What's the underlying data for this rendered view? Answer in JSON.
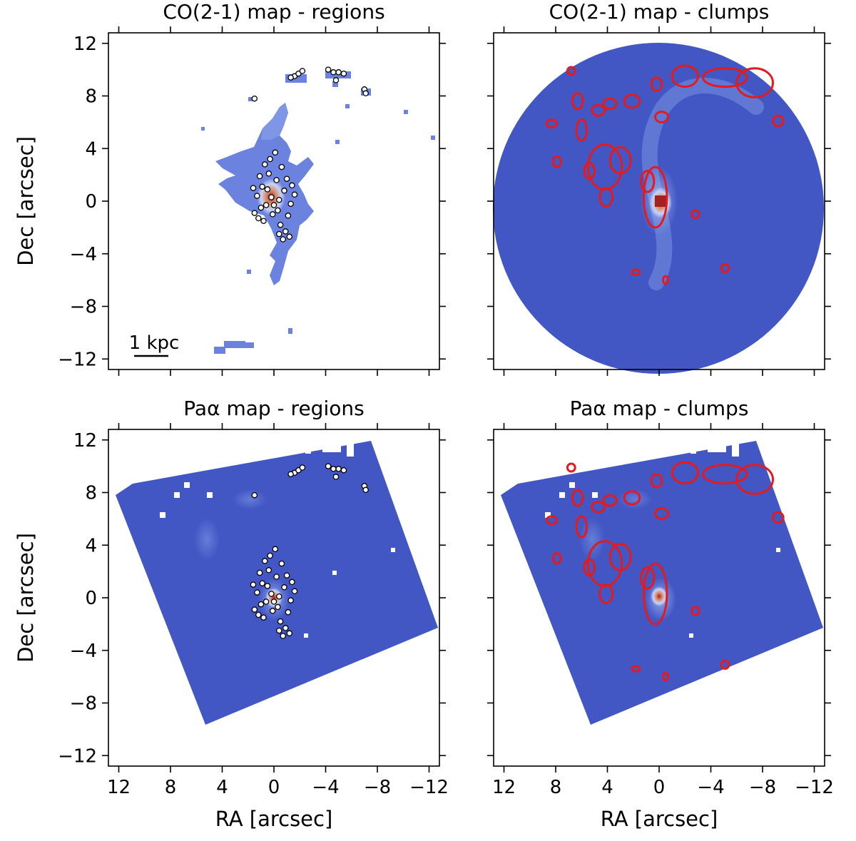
{
  "figure": {
    "panels": [
      {
        "id": "co-regions",
        "title": "CO(2-1) map - regions",
        "map": "CO(2-1)",
        "overlay": "regions",
        "footprint": "patchy",
        "scalebar_label": "1 kpc",
        "show_xlabel": false,
        "show_ylabel": true
      },
      {
        "id": "co-clumps",
        "title": "CO(2-1) map - clumps",
        "map": "CO(2-1)",
        "overlay": "clumps",
        "footprint": "circle",
        "scalebar_label": "",
        "show_xlabel": false,
        "show_ylabel": false
      },
      {
        "id": "paa-regions",
        "title": "Paα map - regions",
        "map": "Paα",
        "overlay": "regions",
        "footprint": "square",
        "scalebar_label": "",
        "show_xlabel": true,
        "show_ylabel": true
      },
      {
        "id": "paa-clumps",
        "title": "Paα map - clumps",
        "map": "Paα",
        "overlay": "clumps",
        "footprint": "square",
        "scalebar_label": "",
        "show_xlabel": true,
        "show_ylabel": false
      }
    ]
  },
  "chart_data": {
    "type": "image-map",
    "xlabel": "RA [arcsec]",
    "ylabel": "Dec [arcsec]",
    "xlim": [
      12.8,
      -12.8
    ],
    "ylim": [
      -12.8,
      12.8
    ],
    "x_ticks": [
      12,
      8,
      4,
      0,
      -4,
      -8,
      -12
    ],
    "x_tick_labels": [
      "12",
      "8",
      "4",
      "0",
      "−4",
      "−8",
      "−12"
    ],
    "y_ticks": [
      12,
      8,
      4,
      0,
      -4,
      -8,
      -12
    ],
    "y_tick_labels": [
      "12",
      "8",
      "4",
      "0",
      "−4",
      "−8",
      "−12"
    ],
    "colors": {
      "background_map": "#3f51c2",
      "emission_mid": "#8ba5ee",
      "emission_peak": "#c03a2b",
      "clump_contour": "#e41a1c",
      "region_marker_edge": "#000000",
      "region_marker_fill": "#ffffff"
    },
    "regions": [
      {
        "ra": 0.2,
        "dec": 0.3
      },
      {
        "ra": -0.4,
        "dec": 0.1
      },
      {
        "ra": 0.6,
        "dec": -0.3
      },
      {
        "ra": -0.8,
        "dec": 0.8
      },
      {
        "ra": 0.9,
        "dec": 1.1
      },
      {
        "ra": -0.2,
        "dec": 1.6
      },
      {
        "ra": 0.4,
        "dec": 2.1
      },
      {
        "ra": -0.6,
        "dec": 2.6
      },
      {
        "ra": 0.3,
        "dec": 3.2
      },
      {
        "ra": -0.1,
        "dec": 3.7
      },
      {
        "ra": 1.3,
        "dec": 0.4
      },
      {
        "ra": -1.3,
        "dec": -0.2
      },
      {
        "ra": 1.5,
        "dec": -0.9
      },
      {
        "ra": -1.1,
        "dec": -1.1
      },
      {
        "ra": 0.8,
        "dec": -1.5
      },
      {
        "ra": -0.5,
        "dec": -1.8
      },
      {
        "ra": 0.1,
        "dec": -1.0
      },
      {
        "ra": 1.1,
        "dec": 1.9
      },
      {
        "ra": -1.0,
        "dec": 1.7
      },
      {
        "ra": 0.7,
        "dec": 2.8
      },
      {
        "ra": -0.9,
        "dec": -2.3
      },
      {
        "ra": -0.4,
        "dec": -2.5
      },
      {
        "ra": -1.2,
        "dec": -2.7
      },
      {
        "ra": -0.7,
        "dec": -2.9
      },
      {
        "ra": 1.6,
        "dec": 1.0
      },
      {
        "ra": -1.6,
        "dec": 0.5
      },
      {
        "ra": 0.0,
        "dec": -0.3
      },
      {
        "ra": 0.5,
        "dec": 0.9
      },
      {
        "ra": -0.3,
        "dec": -0.7
      },
      {
        "ra": 1.0,
        "dec": -0.5
      },
      {
        "ra": -1.4,
        "dec": 1.2
      },
      {
        "ra": 1.2,
        "dec": -1.3
      },
      {
        "ra": -1.6,
        "dec": 9.5
      },
      {
        "ra": -1.9,
        "dec": 9.7
      },
      {
        "ra": -2.2,
        "dec": 9.9
      },
      {
        "ra": -1.3,
        "dec": 9.4
      },
      {
        "ra": -4.2,
        "dec": 10.0
      },
      {
        "ra": -4.6,
        "dec": 9.8
      },
      {
        "ra": -5.0,
        "dec": 9.8
      },
      {
        "ra": -5.4,
        "dec": 9.7
      },
      {
        "ra": -4.8,
        "dec": 9.2
      },
      {
        "ra": -7.0,
        "dec": 8.5
      },
      {
        "ra": -7.1,
        "dec": 8.2
      },
      {
        "ra": 1.5,
        "dec": 7.8
      }
    ],
    "clumps": [
      {
        "ra": 0.3,
        "dec": 0.3,
        "rx": 0.9,
        "ry": 2.3
      },
      {
        "ra": 0.9,
        "dec": 1.5,
        "rx": 0.5,
        "ry": 0.8
      },
      {
        "ra": 4.2,
        "dec": 2.6,
        "rx": 1.3,
        "ry": 1.7
      },
      {
        "ra": 3.0,
        "dec": 3.1,
        "rx": 0.8,
        "ry": 1.0
      },
      {
        "ra": 4.1,
        "dec": 0.3,
        "rx": 0.5,
        "ry": 0.7
      },
      {
        "ra": 5.4,
        "dec": 2.3,
        "rx": 0.4,
        "ry": 0.6
      },
      {
        "ra": 6.0,
        "dec": 5.4,
        "rx": 0.4,
        "ry": 0.8
      },
      {
        "ra": 6.3,
        "dec": 7.6,
        "rx": 0.4,
        "ry": 0.6
      },
      {
        "ra": 4.7,
        "dec": 6.9,
        "rx": 0.5,
        "ry": 0.4
      },
      {
        "ra": 3.8,
        "dec": 7.4,
        "rx": 0.5,
        "ry": 0.4
      },
      {
        "ra": 2.1,
        "dec": 7.6,
        "rx": 0.6,
        "ry": 0.5
      },
      {
        "ra": 0.2,
        "dec": 8.9,
        "rx": 0.4,
        "ry": 0.5
      },
      {
        "ra": -0.2,
        "dec": 6.4,
        "rx": 0.5,
        "ry": 0.4
      },
      {
        "ra": -2.0,
        "dec": 9.5,
        "rx": 1.0,
        "ry": 0.8
      },
      {
        "ra": -5.1,
        "dec": 9.4,
        "rx": 1.7,
        "ry": 0.7
      },
      {
        "ra": -7.4,
        "dec": 9.0,
        "rx": 1.4,
        "ry": 1.1
      },
      {
        "ra": -9.2,
        "dec": 6.1,
        "rx": 0.4,
        "ry": 0.4
      },
      {
        "ra": 8.3,
        "dec": 5.9,
        "rx": 0.4,
        "ry": 0.3
      },
      {
        "ra": 7.9,
        "dec": 3.0,
        "rx": 0.3,
        "ry": 0.4
      },
      {
        "ra": 6.8,
        "dec": 9.9,
        "rx": 0.3,
        "ry": 0.3
      },
      {
        "ra": -2.8,
        "dec": -1.0,
        "rx": 0.3,
        "ry": 0.3
      },
      {
        "ra": 1.8,
        "dec": -5.4,
        "rx": 0.3,
        "ry": 0.2
      },
      {
        "ra": -5.1,
        "dec": -5.1,
        "rx": 0.3,
        "ry": 0.3
      },
      {
        "ra": -0.5,
        "dec": -6.0,
        "rx": 0.2,
        "ry": 0.3
      }
    ]
  }
}
